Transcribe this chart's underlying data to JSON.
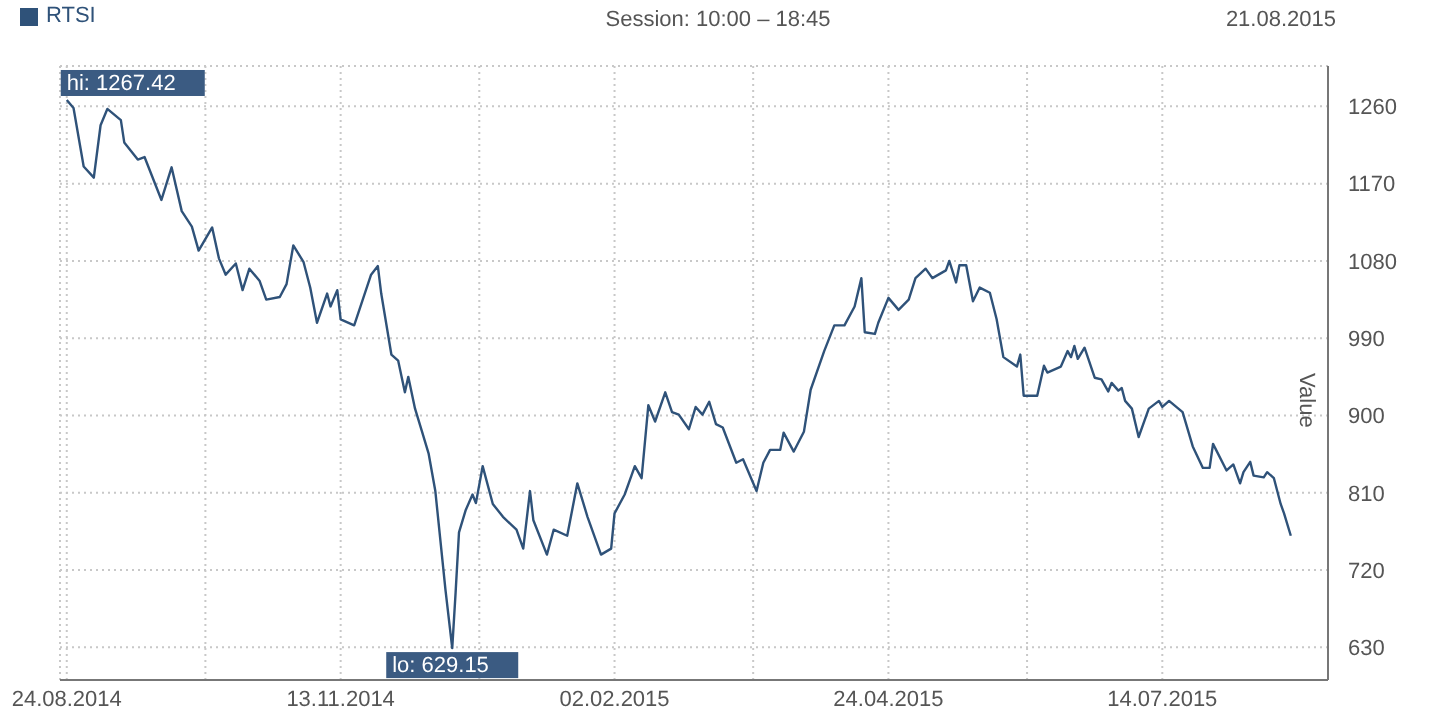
{
  "chart_data": {
    "type": "line",
    "ylabel": "Value",
    "legend": "top left",
    "grid": true,
    "annotations": [
      "Session: 10:00 – 18:45",
      "21.08.2015",
      {
        "text": "hi: 1267.42",
        "x": "2014-08-24",
        "y": 1267.42
      },
      {
        "text": "lo: 629.15",
        "x": "2014-12-16",
        "y": 629.15
      }
    ],
    "xlim": [
      "2014-08-22",
      "2015-09-01"
    ],
    "xticks": [
      {
        "value": "2014-08-24",
        "label": "24.08.2014"
      },
      {
        "value": "2014-10-04",
        "label": null
      },
      {
        "value": "2014-11-13",
        "label": "13.11.2014"
      },
      {
        "value": "2014-12-24",
        "label": null
      },
      {
        "value": "2015-02-02",
        "label": "02.02.2015"
      },
      {
        "value": "2015-03-15",
        "label": null
      },
      {
        "value": "2015-04-24",
        "label": "24.04.2015"
      },
      {
        "value": "2015-06-04",
        "label": null
      },
      {
        "value": "2015-07-14",
        "label": "14.07.2015"
      }
    ],
    "ylim": [
      592,
      1307
    ],
    "yticks": [
      630,
      720,
      810,
      900,
      990,
      1080,
      1170,
      1260
    ],
    "x": [
      "2014-08-24",
      "2014-08-26",
      "2014-08-29",
      "2014-09-01",
      "2014-09-03",
      "2014-09-05",
      "2014-09-09",
      "2014-09-10",
      "2014-09-14",
      "2014-09-16",
      "2014-09-21",
      "2014-09-24",
      "2014-09-27",
      "2014-09-30",
      "2014-10-02",
      "2014-10-06",
      "2014-10-08",
      "2014-10-10",
      "2014-10-13",
      "2014-10-15",
      "2014-10-17",
      "2014-10-20",
      "2014-10-22",
      "2014-10-26",
      "2014-10-28",
      "2014-10-30",
      "2014-11-02",
      "2014-11-04",
      "2014-11-06",
      "2014-11-09",
      "2014-11-10",
      "2014-11-12",
      "2014-11-13",
      "2014-11-17",
      "2014-11-22",
      "2014-11-24",
      "2014-11-25",
      "2014-11-28",
      "2014-11-30",
      "2014-12-02",
      "2014-12-03",
      "2014-12-05",
      "2014-12-07",
      "2014-12-09",
      "2014-12-11",
      "2014-12-14",
      "2014-12-16",
      "2014-12-17",
      "2014-12-18",
      "2014-12-20",
      "2014-12-22",
      "2014-12-23",
      "2014-12-25",
      "2014-12-28",
      "2014-12-31",
      "2015-01-04",
      "2015-01-06",
      "2015-01-08",
      "2015-01-09",
      "2015-01-13",
      "2015-01-15",
      "2015-01-19",
      "2015-01-22",
      "2015-01-25",
      "2015-01-29",
      "2015-02-01",
      "2015-02-02",
      "2015-02-05",
      "2015-02-07",
      "2015-02-08",
      "2015-02-10",
      "2015-02-12",
      "2015-02-14",
      "2015-02-17",
      "2015-02-19",
      "2015-02-21",
      "2015-02-24",
      "2015-02-26",
      "2015-02-28",
      "2015-03-02",
      "2015-03-04",
      "2015-03-06",
      "2015-03-10",
      "2015-03-12",
      "2015-03-16",
      "2015-03-18",
      "2015-03-20",
      "2015-03-23",
      "2015-03-24",
      "2015-03-27",
      "2015-03-30",
      "2015-04-01",
      "2015-04-05",
      "2015-04-08",
      "2015-04-11",
      "2015-04-14",
      "2015-04-16",
      "2015-04-17",
      "2015-04-20",
      "2015-04-21",
      "2015-04-24",
      "2015-04-27",
      "2015-04-30",
      "2015-05-02",
      "2015-05-05",
      "2015-05-07",
      "2015-05-11",
      "2015-05-12",
      "2015-05-14",
      "2015-05-15",
      "2015-05-17",
      "2015-05-19",
      "2015-05-21",
      "2015-05-24",
      "2015-05-26",
      "2015-05-28",
      "2015-06-01",
      "2015-06-02",
      "2015-06-03",
      "2015-06-07",
      "2015-06-09",
      "2015-06-10",
      "2015-06-14",
      "2015-06-16",
      "2015-06-17",
      "2015-06-18",
      "2015-06-19",
      "2015-06-21",
      "2015-06-24",
      "2015-06-26",
      "2015-06-28",
      "2015-06-29",
      "2015-07-01",
      "2015-07-02",
      "2015-07-03",
      "2015-07-05",
      "2015-07-07",
      "2015-07-10",
      "2015-07-13",
      "2015-07-14",
      "2015-07-16",
      "2015-07-20",
      "2015-07-23",
      "2015-07-26",
      "2015-07-28",
      "2015-07-29",
      "2015-08-02",
      "2015-08-04",
      "2015-08-06",
      "2015-08-07",
      "2015-08-09",
      "2015-08-10",
      "2015-08-13",
      "2015-08-14",
      "2015-08-16",
      "2015-08-18",
      "2015-08-19",
      "2015-08-21"
    ],
    "series": [
      {
        "name": "RTSI",
        "color": "#2f5279",
        "values": [
          1267.42,
          1258,
          1190,
          1177,
          1238,
          1257,
          1244,
          1218,
          1198,
          1201,
          1151,
          1189,
          1138,
          1120,
          1092,
          1119,
          1083,
          1064,
          1077,
          1046,
          1071,
          1057,
          1035,
          1038,
          1053,
          1098,
          1079,
          1049,
          1008,
          1042,
          1027,
          1046,
          1012,
          1005,
          1064,
          1074,
          1042,
          971,
          964,
          927,
          945,
          908,
          882,
          856,
          812,
          697,
          629.15,
          694,
          764,
          790,
          808,
          798,
          841,
          797,
          782,
          767,
          745,
          812,
          778,
          738,
          767,
          760,
          821,
          782,
          738,
          745,
          786,
          808,
          830,
          841,
          827,
          912,
          893,
          927,
          904,
          901,
          884,
          910,
          901,
          916,
          890,
          886,
          845,
          849,
          812,
          845,
          860,
          860,
          880,
          858,
          881,
          930,
          975,
          1005,
          1005,
          1027,
          1060,
          997,
          995,
          1008,
          1037,
          1023,
          1035,
          1060,
          1071,
          1060,
          1069,
          1080,
          1055,
          1075,
          1075,
          1033,
          1049,
          1043,
          1012,
          968,
          957,
          971,
          923,
          923,
          958,
          950,
          957,
          975,
          968,
          981,
          966,
          979,
          944,
          942,
          928,
          938,
          929,
          932,
          917,
          908,
          875,
          908,
          917,
          910,
          917,
          904,
          864,
          839,
          839,
          867,
          836,
          843,
          821,
          834,
          846,
          830,
          828,
          834,
          827,
          797,
          786,
          760
        ]
      }
    ]
  }
}
